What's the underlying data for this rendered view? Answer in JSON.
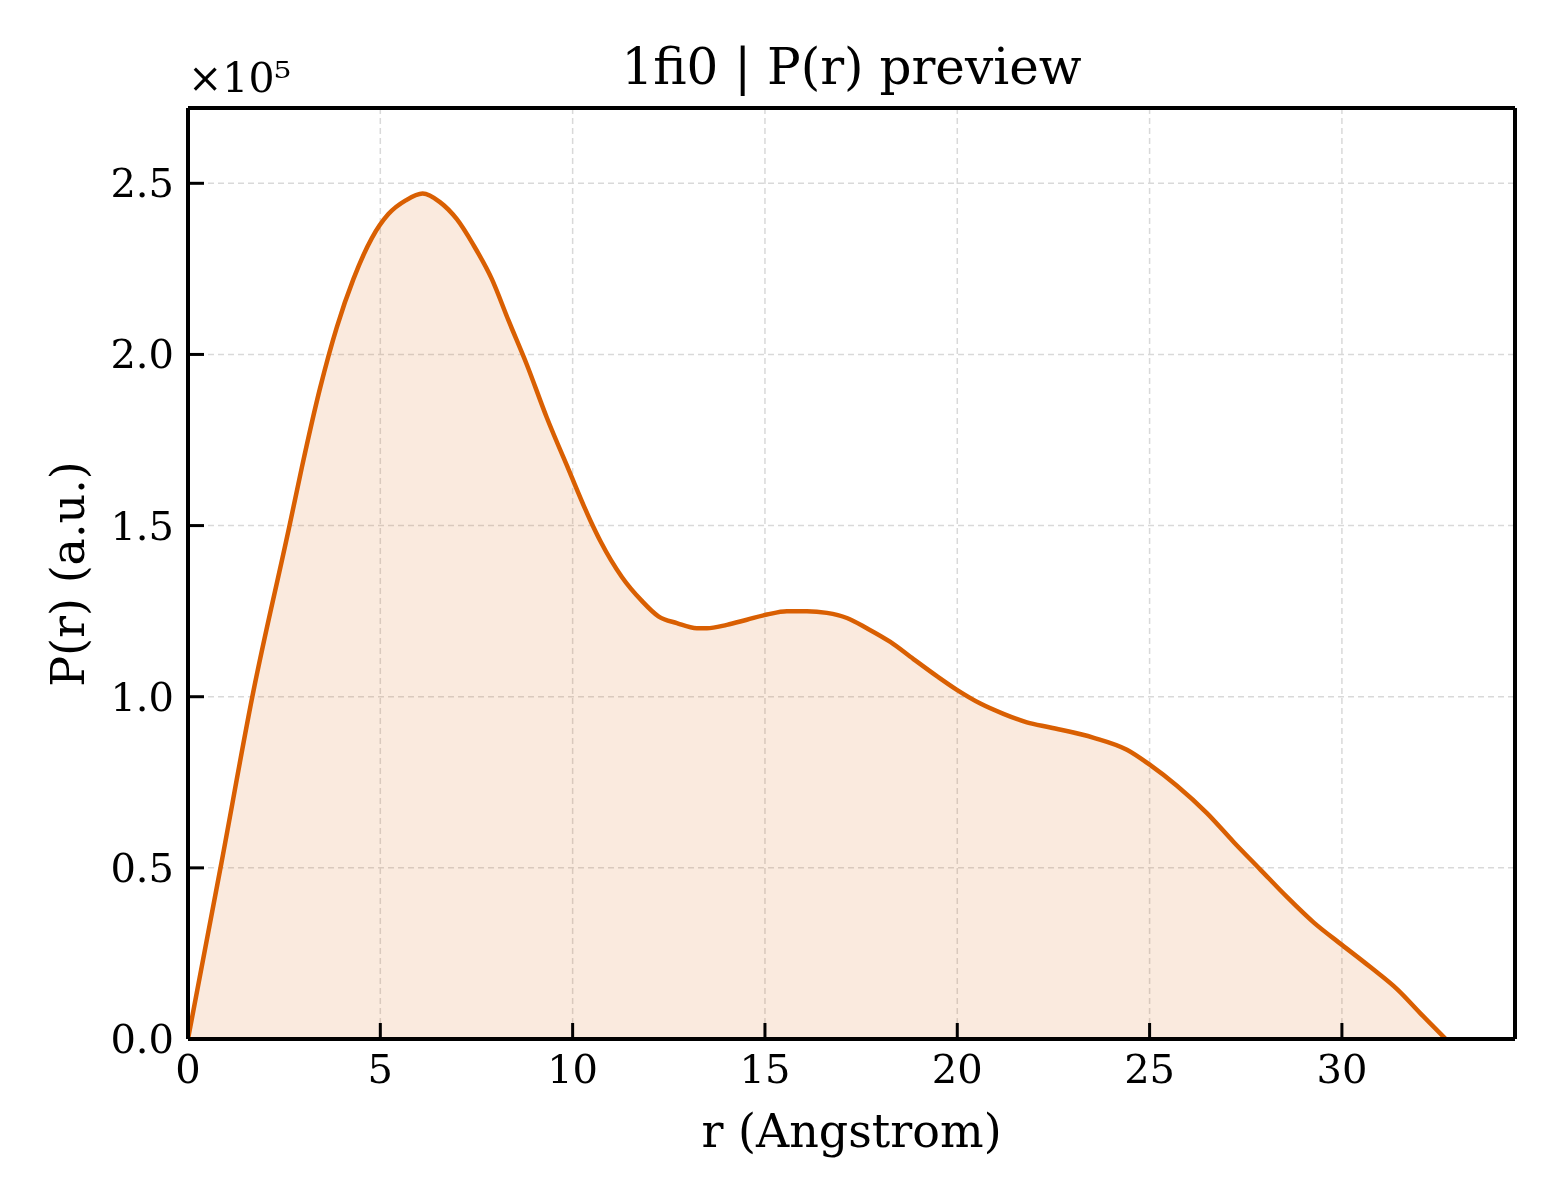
{
  "chart_data": {
    "type": "area",
    "title": "1fi0 | P(r) preview",
    "xlabel": "r (Angstrom)",
    "ylabel": "P(r) (a.u.)",
    "annotations": [
      "×10⁵"
    ],
    "color": "#d95f02",
    "x": [
      0,
      0.87,
      1.69,
      2.64,
      2.96,
      3.43,
      3.87,
      4.3,
      4.78,
      5.21,
      5.66,
      6.1,
      6.55,
      6.99,
      7.42,
      7.9,
      8.33,
      8.81,
      9.33,
      9.89,
      10.46,
      10.72,
      11.28,
      11.8,
      12.23,
      12.71,
      13.23,
      13.49,
      14.01,
      14.53,
      15.05,
      15.57,
      16.09,
      16.61,
      17.13,
      17.65,
      18.26,
      18.86,
      19.47,
      19.99,
      20.6,
      21.2,
      21.81,
      22.42,
      23.55,
      24.41,
      25.02,
      25.71,
      26.49,
      27.19,
      27.88,
      28.57,
      29.27,
      30,
      30.74,
      31.44,
      32.04,
      32.7
    ],
    "values": [
      0,
      0.515,
      1.01,
      1.5,
      1.67,
      1.9,
      2.08,
      2.22,
      2.34,
      2.41,
      2.45,
      2.47,
      2.445,
      2.395,
      2.32,
      2.22,
      2.1,
      1.97,
      1.815,
      1.665,
      1.515,
      1.455,
      1.35,
      1.28,
      1.235,
      1.215,
      1.2,
      1.2,
      1.21,
      1.225,
      1.24,
      1.25,
      1.25,
      1.245,
      1.23,
      1.2,
      1.16,
      1.11,
      1.06,
      1.02,
      0.98,
      0.95,
      0.925,
      0.91,
      0.88,
      0.845,
      0.8,
      0.74,
      0.66,
      0.575,
      0.495,
      0.415,
      0.34,
      0.275,
      0.21,
      0.145,
      0.075,
      0
    ],
    "xlim": [
      0,
      34.5
    ],
    "xticks": [
      0,
      5,
      10,
      15,
      20,
      25,
      30
    ],
    "ylim": [
      0,
      2.72
    ],
    "yticks": [
      {
        "value": 0,
        "label": "0.0"
      },
      0.5,
      {
        "value": 1,
        "label": "1.0"
      },
      1.5,
      {
        "value": 2,
        "label": "2.0"
      },
      2.5
    ],
    "grid": true
  }
}
